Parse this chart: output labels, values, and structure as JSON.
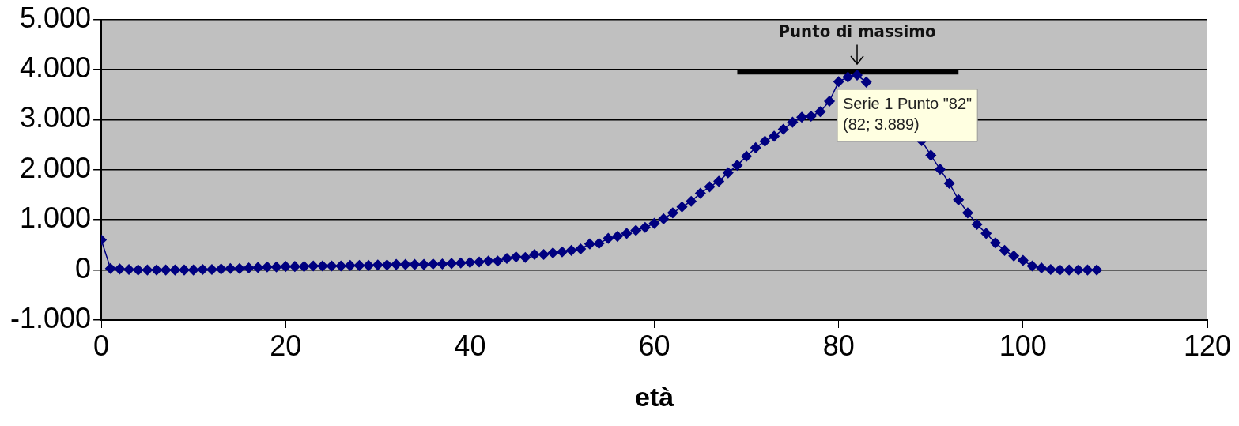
{
  "chart_data": {
    "type": "line",
    "xlabel": "età",
    "x": [
      0,
      1,
      2,
      3,
      4,
      5,
      6,
      7,
      8,
      9,
      10,
      11,
      12,
      13,
      14,
      15,
      16,
      17,
      18,
      19,
      20,
      21,
      22,
      23,
      24,
      25,
      26,
      27,
      28,
      29,
      30,
      31,
      32,
      33,
      34,
      35,
      36,
      37,
      38,
      39,
      40,
      41,
      42,
      43,
      44,
      45,
      46,
      47,
      48,
      49,
      50,
      51,
      52,
      53,
      54,
      55,
      56,
      57,
      58,
      59,
      60,
      61,
      62,
      63,
      64,
      65,
      66,
      67,
      68,
      69,
      70,
      71,
      72,
      73,
      74,
      75,
      76,
      77,
      78,
      79,
      80,
      81,
      82,
      83,
      84,
      85,
      86,
      87,
      88,
      89,
      90,
      91,
      92,
      93,
      94,
      95,
      96,
      97,
      98,
      99,
      100,
      101,
      102,
      103,
      104,
      105,
      106,
      107,
      108
    ],
    "series": [
      {
        "color": "#000080",
        "values": [
          600,
          30,
          20,
          10,
          0,
          0,
          0,
          0,
          0,
          0,
          0,
          10,
          10,
          20,
          30,
          30,
          40,
          50,
          60,
          60,
          70,
          70,
          70,
          80,
          80,
          80,
          80,
          90,
          90,
          90,
          100,
          100,
          110,
          110,
          110,
          110,
          120,
          120,
          130,
          140,
          150,
          160,
          180,
          180,
          230,
          260,
          250,
          310,
          310,
          340,
          360,
          390,
          420,
          520,
          530,
          630,
          670,
          730,
          790,
          850,
          930,
          1020,
          1140,
          1260,
          1370,
          1530,
          1660,
          1770,
          1940,
          2090,
          2270,
          2440,
          2570,
          2670,
          2810,
          2950,
          3050,
          3070,
          3160,
          3370,
          3760,
          3850,
          3889,
          3750,
          null,
          null,
          null,
          null,
          null,
          2580,
          2290,
          2010,
          1730,
          1400,
          1140,
          910,
          730,
          540,
          390,
          280,
          190,
          80,
          40,
          10,
          0,
          0,
          0,
          0,
          0
        ]
      },
      {
        "type": "line",
        "color": "#000000",
        "marker": "none",
        "x": [
          69,
          93
        ],
        "values": [
          3950,
          3950
        ]
      }
    ],
    "xlim": [
      0,
      120
    ],
    "xticks": [
      0,
      20,
      40,
      60,
      80,
      100,
      120
    ],
    "ylim": [
      -1000,
      5000
    ],
    "yticks": [
      {
        "value": -1000,
        "label": "-1.000"
      },
      {
        "value": 0,
        "label": "0"
      },
      {
        "value": 1000,
        "label": "1.000"
      },
      {
        "value": 2000,
        "label": "2.000"
      },
      {
        "value": 3000,
        "label": "3.000"
      },
      {
        "value": 4000,
        "label": "4.000"
      },
      {
        "value": 5000,
        "label": "5.000"
      }
    ],
    "grid": "y",
    "legend": false,
    "marker": "diamond",
    "annotations": [
      {
        "text": "Punto di massimo",
        "x": 82,
        "y": 3889
      },
      "Serie 1 Punto \"82\"",
      "(82; 3.889)"
    ]
  }
}
